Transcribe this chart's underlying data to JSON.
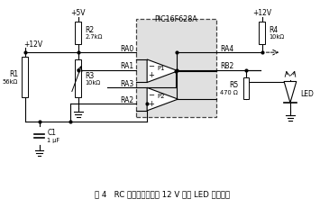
{
  "title": "图 4   RC 充电测电阻值及 12 V 输出 LED 指示电路",
  "ic_label": "PIC16F628A",
  "vcc5": "+5V",
  "vcc12_left": "+12V",
  "vcc12_right": "+12V",
  "R1_label": [
    "R1",
    "56kΩ"
  ],
  "R2_label": [
    "R2",
    "2.7kΩ"
  ],
  "R3_label": [
    "R3",
    "10kΩ"
  ],
  "R4_label": [
    "R4",
    "10kΩ"
  ],
  "R5_label": [
    "R5",
    "470 Ω"
  ],
  "C1_label": [
    "C1",
    "1 μF"
  ],
  "P1_label": "P1",
  "P2_label": "P2",
  "RA0": "RA0",
  "RA1": "RA1",
  "RA2": "RA2",
  "RA3": "RA3",
  "RA4": "RA4",
  "RB2": "RB2",
  "LED_label": "LED",
  "fig_width": 3.55,
  "fig_height": 2.31,
  "dpi": 100
}
